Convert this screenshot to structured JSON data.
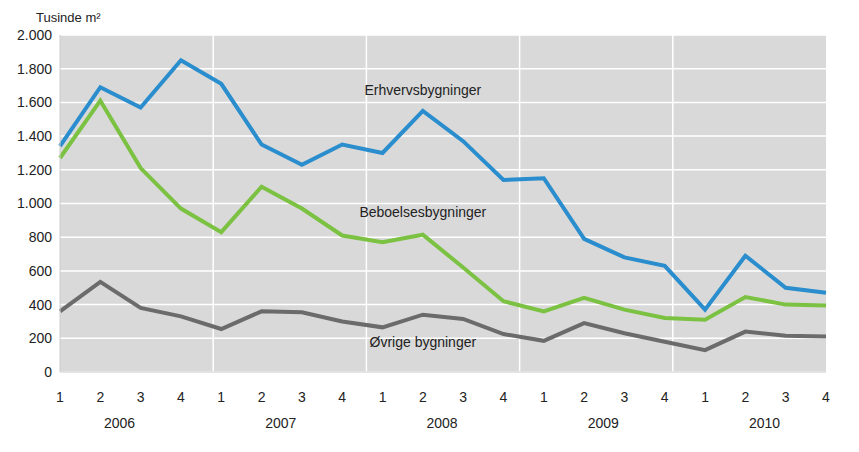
{
  "chart_data": {
    "type": "line",
    "y_label": "Tusinde m²",
    "categories": [
      "1",
      "2",
      "3",
      "4",
      "1",
      "2",
      "3",
      "4",
      "1",
      "2",
      "3",
      "4",
      "1",
      "2",
      "3",
      "4",
      "1",
      "2",
      "3",
      "4"
    ],
    "years": [
      "2006",
      "2007",
      "2008",
      "2009",
      "2010"
    ],
    "series": [
      {
        "name": "Erhvervsbygninger",
        "color": "#2a8dcd",
        "values": [
          1340,
          1690,
          1570,
          1850,
          1710,
          1350,
          1230,
          1350,
          1300,
          1550,
          1370,
          1140,
          1150,
          790,
          680,
          630,
          370,
          690,
          500,
          470
        ]
      },
      {
        "name": "Beboelsesbygninger",
        "color": "#7cc242",
        "values": [
          1270,
          1610,
          1210,
          970,
          830,
          1100,
          970,
          810,
          770,
          815,
          620,
          420,
          360,
          440,
          370,
          320,
          310,
          445,
          400,
          395
        ]
      },
      {
        "name": "Øvrige bygninger",
        "color": "#6b6b6b",
        "values": [
          360,
          535,
          380,
          330,
          255,
          360,
          355,
          300,
          265,
          340,
          315,
          225,
          185,
          290,
          230,
          180,
          130,
          240,
          215,
          210
        ]
      }
    ],
    "ylim": [
      0,
      2000
    ],
    "yticks": [
      0,
      200,
      400,
      600,
      800,
      {
        "value": 1000,
        "label": "1.000"
      },
      {
        "value": 1200,
        "label": "1.200"
      },
      {
        "value": 1400,
        "label": "1.400"
      },
      {
        "value": 1600,
        "label": "1.600"
      },
      {
        "value": 1800,
        "label": "1.800"
      },
      {
        "value": 2000,
        "label": "2.000"
      }
    ],
    "grid": true
  }
}
